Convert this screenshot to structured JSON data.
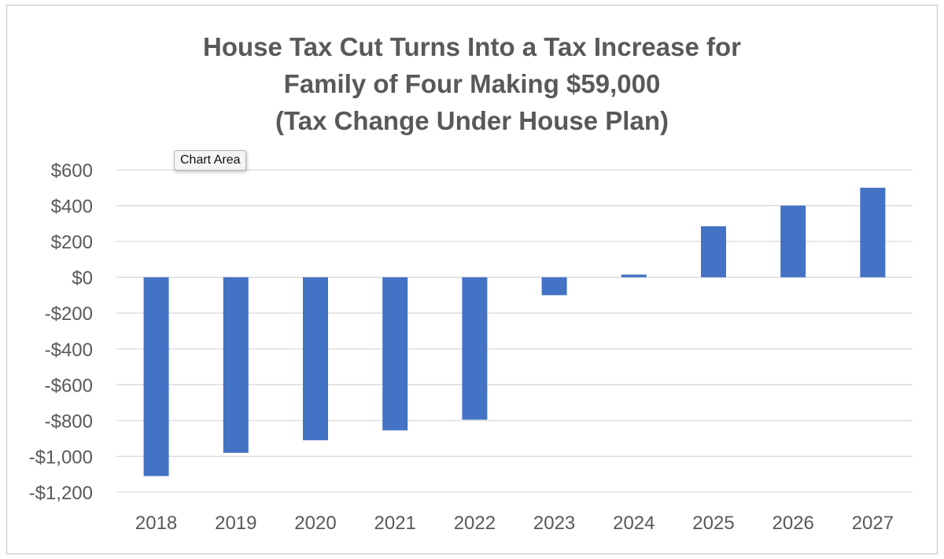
{
  "tooltip": {
    "label": "Chart Area"
  },
  "chart_data": {
    "type": "bar",
    "title_lines": [
      "House Tax Cut Turns Into a Tax Increase for",
      "Family of Four Making $59,000",
      "(Tax Change Under House Plan)"
    ],
    "categories": [
      "2018",
      "2019",
      "2020",
      "2021",
      "2022",
      "2023",
      "2024",
      "2025",
      "2026",
      "2027"
    ],
    "values": [
      -1110,
      -980,
      -910,
      -855,
      -795,
      -100,
      15,
      285,
      400,
      500
    ],
    "ylim": [
      -1200,
      600
    ],
    "yticks": [
      600,
      400,
      200,
      0,
      -200,
      -400,
      -600,
      -800,
      -1000,
      -1200
    ],
    "ytick_labels": [
      "$600",
      "$400",
      "$200",
      "$0",
      "-$200",
      "-$400",
      "-$600",
      "-$800",
      "-$1,000",
      "-$1,200"
    ],
    "xlabel": "",
    "ylabel": "",
    "grid": true,
    "legend": "none",
    "bar_color": "#4472c4",
    "grid_color": "#d9d9d9"
  }
}
